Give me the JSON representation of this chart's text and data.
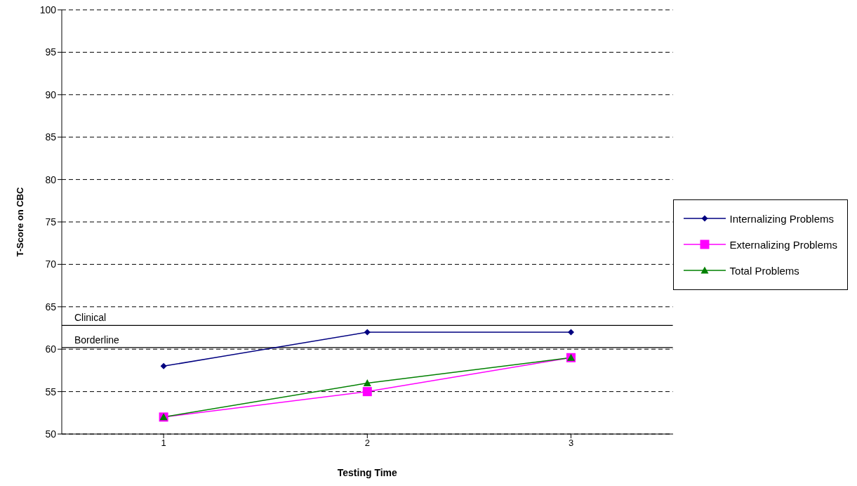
{
  "chart_data": {
    "type": "line",
    "xlabel": "Testing Time",
    "ylabel": "T-Score on CBC",
    "categories": [
      "1",
      "2",
      "3"
    ],
    "series": [
      {
        "name": "Internalizing Problems",
        "color": "#000080",
        "marker": "diamond",
        "values": [
          58,
          62,
          62
        ]
      },
      {
        "name": "Externalizing Problems",
        "color": "#ff00ff",
        "marker": "square",
        "values": [
          52,
          55,
          59
        ]
      },
      {
        "name": "Total Problems",
        "color": "#008000",
        "marker": "triangle",
        "values": [
          52,
          56,
          59
        ]
      }
    ],
    "ylim": [
      50,
      100
    ],
    "yticks": [
      50,
      55,
      60,
      65,
      70,
      75,
      80,
      85,
      90,
      95,
      100
    ],
    "grid": "y",
    "legend": "right",
    "line_style": "solid",
    "ref_lines": [
      {
        "axis": "y",
        "value": 62.8,
        "label": "Clinical",
        "color": "#000000",
        "line_style": "solid"
      },
      {
        "axis": "y",
        "value": 60.2,
        "label": "Borderline",
        "color": "#000000",
        "line_style": "solid"
      }
    ]
  }
}
